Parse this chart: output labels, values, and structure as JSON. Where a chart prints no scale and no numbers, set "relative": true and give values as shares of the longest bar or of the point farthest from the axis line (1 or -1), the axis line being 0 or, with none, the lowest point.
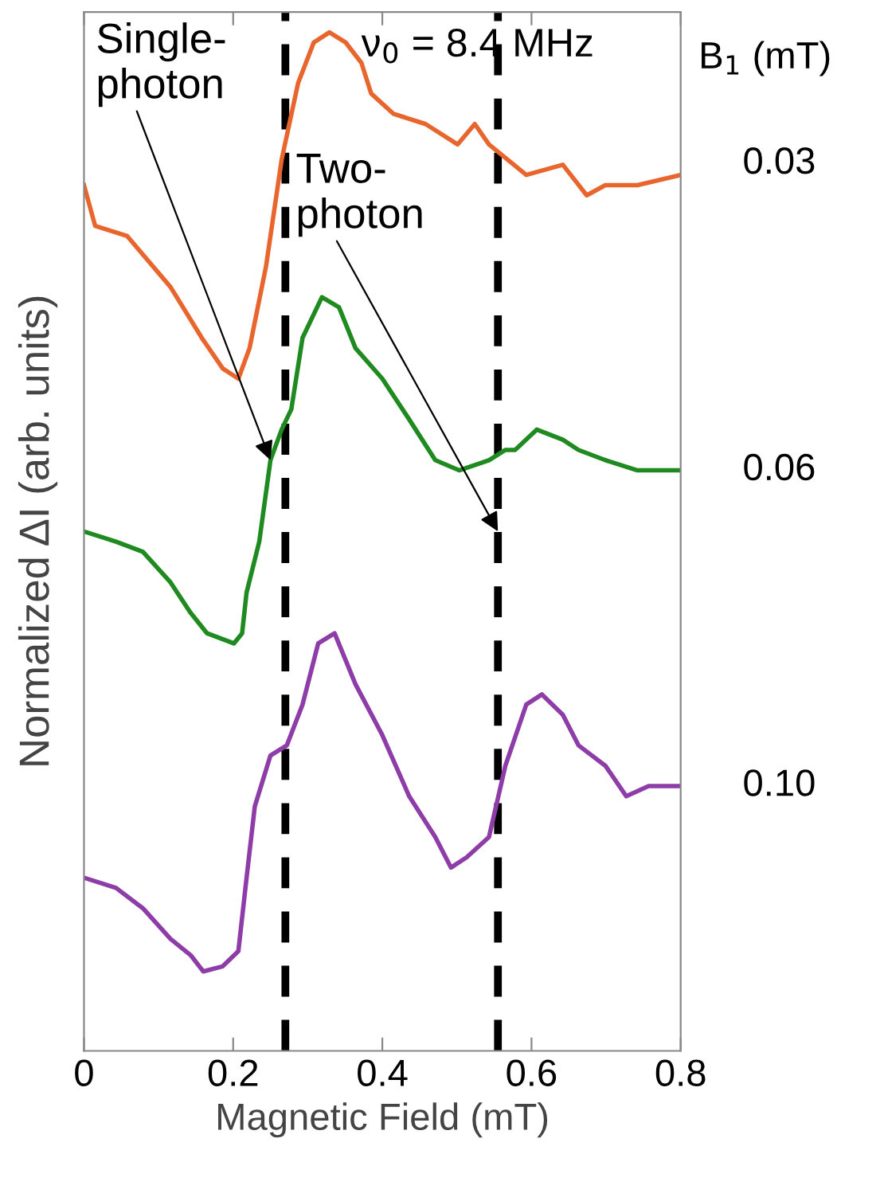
{
  "chart_data": {
    "type": "line",
    "relative": true,
    "xlabel": "Magnetic Field (mT)",
    "ylabel": "Normalized ΔI (arb. units)",
    "legend_title": "B$_{1}$ (mT)",
    "xlim": [
      0,
      0.8
    ],
    "xticks": [
      0,
      0.2,
      0.4,
      0.6,
      0.8
    ],
    "grid": false,
    "legend": false,
    "line_style": "solid",
    "marker": "none",
    "series": [
      {
        "name": "0.03",
        "color": "#e8662e",
        "x": [
          0.0,
          0.015,
          0.058,
          0.116,
          0.158,
          0.186,
          0.207,
          0.222,
          0.244,
          0.265,
          0.287,
          0.308,
          0.329,
          0.351,
          0.372,
          0.385,
          0.415,
          0.458,
          0.501,
          0.524,
          0.543,
          0.593,
          0.642,
          0.674,
          0.699,
          0.742,
          0.8
        ],
        "values": [
          0.85,
          0.81,
          0.8,
          0.75,
          0.7,
          0.67,
          0.66,
          0.69,
          0.77,
          0.875,
          0.95,
          0.99,
          1.0,
          0.99,
          0.97,
          0.94,
          0.92,
          0.91,
          0.89,
          0.91,
          0.89,
          0.86,
          0.87,
          0.84,
          0.85,
          0.85,
          0.86
        ]
      },
      {
        "name": "0.06",
        "color": "#1f8a1f",
        "x": [
          0.0,
          0.043,
          0.079,
          0.116,
          0.143,
          0.165,
          0.201,
          0.212,
          0.218,
          0.235,
          0.25,
          0.265,
          0.278,
          0.293,
          0.319,
          0.342,
          0.364,
          0.4,
          0.436,
          0.471,
          0.503,
          0.543,
          0.565,
          0.578,
          0.607,
          0.642,
          0.663,
          0.699,
          0.742,
          0.8
        ],
        "values": [
          0.51,
          0.5,
          0.49,
          0.46,
          0.43,
          0.41,
          0.4,
          0.41,
          0.45,
          0.5,
          0.58,
          0.61,
          0.63,
          0.7,
          0.74,
          0.73,
          0.69,
          0.66,
          0.62,
          0.58,
          0.57,
          0.58,
          0.59,
          0.59,
          0.61,
          0.6,
          0.59,
          0.58,
          0.57,
          0.57
        ]
      },
      {
        "name": "0.10",
        "color": "#8e3ca8",
        "x": [
          0.0,
          0.043,
          0.079,
          0.116,
          0.143,
          0.16,
          0.186,
          0.207,
          0.218,
          0.229,
          0.25,
          0.272,
          0.293,
          0.314,
          0.336,
          0.364,
          0.4,
          0.436,
          0.471,
          0.492,
          0.513,
          0.543,
          0.565,
          0.593,
          0.614,
          0.642,
          0.663,
          0.699,
          0.727,
          0.757,
          0.8
        ],
        "values": [
          0.17,
          0.16,
          0.14,
          0.11,
          0.094,
          0.078,
          0.083,
          0.098,
          0.17,
          0.24,
          0.29,
          0.3,
          0.34,
          0.4,
          0.41,
          0.36,
          0.31,
          0.25,
          0.21,
          0.18,
          0.19,
          0.21,
          0.28,
          0.34,
          0.35,
          0.33,
          0.3,
          0.28,
          0.25,
          0.26,
          0.26
        ]
      }
    ],
    "ref_lines": [
      {
        "axis": "x",
        "value": 0.27,
        "color": "#000000",
        "line_style": "dashed"
      },
      {
        "axis": "x",
        "value": 0.555,
        "color": "#000000",
        "line_style": "dashed"
      }
    ],
    "annotations": [
      {
        "text": "Single-\nphoton",
        "x": 0.25,
        "y": 0.58
      },
      {
        "text": "Two-\nphoton",
        "x": 0.555,
        "y": 0.51
      },
      "ν$_{0}$ = 8.4 MHz"
    ]
  }
}
